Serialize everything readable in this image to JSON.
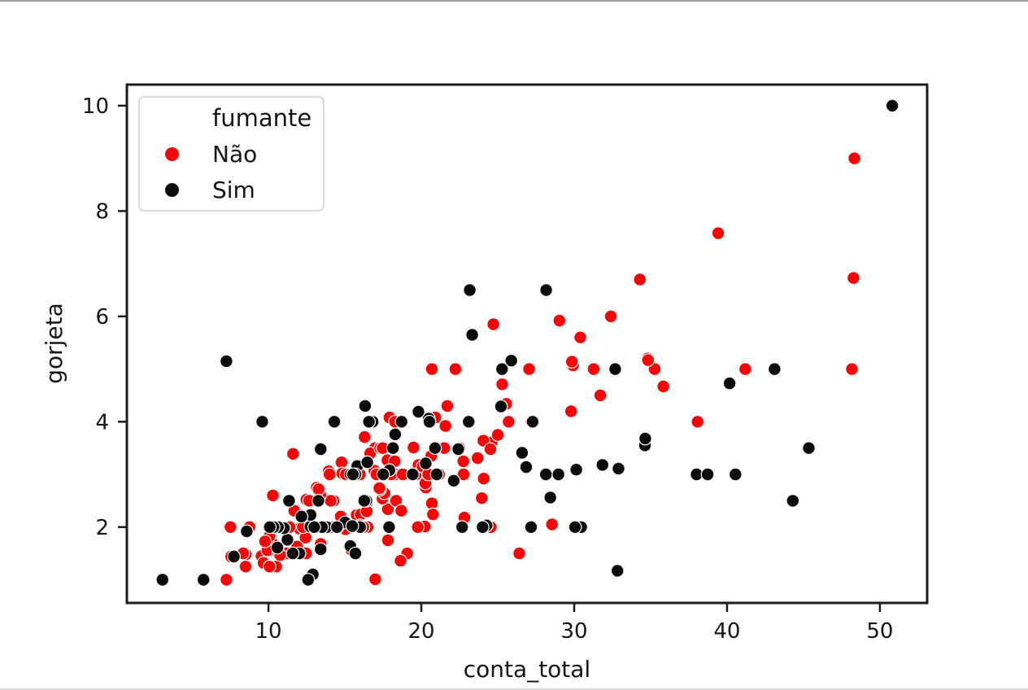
{
  "chart_data": {
    "type": "scatter",
    "title": "",
    "xlabel": "conta_total",
    "ylabel": "gorjeta",
    "xlim": [
      0.74,
      53.09
    ],
    "ylim": [
      0.56,
      10.4
    ],
    "xticks": [
      10,
      20,
      30,
      40,
      50
    ],
    "yticks": [
      2,
      4,
      6,
      8,
      10
    ],
    "grid": false,
    "axis_color": "#1c1c1c",
    "marker_edge_color": "#ffffff",
    "legend": {
      "title": "fumante",
      "position": "upper-left",
      "entries": [
        {
          "label": "Não",
          "color": "#f60707"
        },
        {
          "label": "Sim",
          "color": "#0a0a0a"
        }
      ]
    },
    "series": [
      {
        "name": "Não",
        "color": "#f60707",
        "points": [
          [
            16.99,
            1.01
          ],
          [
            10.34,
            1.66
          ],
          [
            21.01,
            3.5
          ],
          [
            23.68,
            3.31
          ],
          [
            24.59,
            3.61
          ],
          [
            25.29,
            4.71
          ],
          [
            8.77,
            2.0
          ],
          [
            26.88,
            3.12
          ],
          [
            15.04,
            1.96
          ],
          [
            14.78,
            3.23
          ],
          [
            10.27,
            1.71
          ],
          [
            35.26,
            5.0
          ],
          [
            15.42,
            1.57
          ],
          [
            18.43,
            3.0
          ],
          [
            14.83,
            3.02
          ],
          [
            21.58,
            3.92
          ],
          [
            10.33,
            1.67
          ],
          [
            16.29,
            3.71
          ],
          [
            16.97,
            3.5
          ],
          [
            20.65,
            3.35
          ],
          [
            17.92,
            4.08
          ],
          [
            20.29,
            2.75
          ],
          [
            15.77,
            2.23
          ],
          [
            39.42,
            7.58
          ],
          [
            19.82,
            3.18
          ],
          [
            17.81,
            2.34
          ],
          [
            13.37,
            2.0
          ],
          [
            12.69,
            2.0
          ],
          [
            21.7,
            4.3
          ],
          [
            19.65,
            3.0
          ],
          [
            9.55,
            1.45
          ],
          [
            18.35,
            2.5
          ],
          [
            15.06,
            3.0
          ],
          [
            20.69,
            2.45
          ],
          [
            17.78,
            3.27
          ],
          [
            24.06,
            3.64
          ],
          [
            16.31,
            2.0
          ],
          [
            16.93,
            3.07
          ],
          [
            18.69,
            2.31
          ],
          [
            31.27,
            5.0
          ],
          [
            16.04,
            2.24
          ],
          [
            17.46,
            2.54
          ],
          [
            13.94,
            3.06
          ],
          [
            9.68,
            1.32
          ],
          [
            30.4,
            5.6
          ],
          [
            18.29,
            3.0
          ],
          [
            22.23,
            5.0
          ],
          [
            32.4,
            6.0
          ],
          [
            28.55,
            2.05
          ],
          [
            18.04,
            3.0
          ],
          [
            12.54,
            2.5
          ],
          [
            10.29,
            2.6
          ],
          [
            34.81,
            5.2
          ],
          [
            9.94,
            1.56
          ],
          [
            25.56,
            4.34
          ],
          [
            19.49,
            3.51
          ],
          [
            26.41,
            1.5
          ],
          [
            48.27,
            6.73
          ],
          [
            17.59,
            2.64
          ],
          [
            20.08,
            3.15
          ],
          [
            16.45,
            2.47
          ],
          [
            20.23,
            2.01
          ],
          [
            12.02,
            1.97
          ],
          [
            17.07,
            3.0
          ],
          [
            14.73,
            2.2
          ],
          [
            10.51,
            1.25
          ],
          [
            27.2,
            4.0
          ],
          [
            22.76,
            3.0
          ],
          [
            17.29,
            2.71
          ],
          [
            16.66,
            3.4
          ],
          [
            10.07,
            1.83
          ],
          [
            15.98,
            2.03
          ],
          [
            34.83,
            5.17
          ],
          [
            13.03,
            2.0
          ],
          [
            18.28,
            4.0
          ],
          [
            24.71,
            5.85
          ],
          [
            21.16,
            3.0
          ],
          [
            22.49,
            3.5
          ],
          [
            22.75,
            3.25
          ],
          [
            12.46,
            1.5
          ],
          [
            20.92,
            4.08
          ],
          [
            18.24,
            3.76
          ],
          [
            14.0,
            3.0
          ],
          [
            7.25,
            1.0
          ],
          [
            38.07,
            4.0
          ],
          [
            23.95,
            2.55
          ],
          [
            25.71,
            4.0
          ],
          [
            17.31,
            3.5
          ],
          [
            29.93,
            5.07
          ],
          [
            10.65,
            1.5
          ],
          [
            12.43,
            1.8
          ],
          [
            24.08,
            2.92
          ],
          [
            11.69,
            2.31
          ],
          [
            13.42,
            1.68
          ],
          [
            14.26,
            2.5
          ],
          [
            15.95,
            2.0
          ],
          [
            12.48,
            2.52
          ],
          [
            29.8,
            4.2
          ],
          [
            8.52,
            1.48
          ],
          [
            14.52,
            2.0
          ],
          [
            11.38,
            2.0
          ],
          [
            22.82,
            2.18
          ],
          [
            19.08,
            1.5
          ],
          [
            20.27,
            2.83
          ],
          [
            11.17,
            1.5
          ],
          [
            12.26,
            2.0
          ],
          [
            18.26,
            3.25
          ],
          [
            8.51,
            1.25
          ],
          [
            10.33,
            2.0
          ],
          [
            14.15,
            2.0
          ],
          [
            13.16,
            2.75
          ],
          [
            17.47,
            3.5
          ],
          [
            34.3,
            6.7
          ],
          [
            41.19,
            5.0
          ],
          [
            27.05,
            5.0
          ],
          [
            16.43,
            2.3
          ],
          [
            8.35,
            1.5
          ],
          [
            18.64,
            1.36
          ],
          [
            11.87,
            1.63
          ],
          [
            9.78,
            1.73
          ],
          [
            7.51,
            2.0
          ],
          [
            14.07,
            2.5
          ],
          [
            13.13,
            2.0
          ],
          [
            17.26,
            2.74
          ],
          [
            24.55,
            2.0
          ],
          [
            19.77,
            2.0
          ],
          [
            29.85,
            5.14
          ],
          [
            48.17,
            5.0
          ],
          [
            25.0,
            3.75
          ],
          [
            13.39,
            2.61
          ],
          [
            16.49,
            2.0
          ],
          [
            21.5,
            3.5
          ],
          [
            12.66,
            2.5
          ],
          [
            16.21,
            2.0
          ],
          [
            13.81,
            2.0
          ],
          [
            24.52,
            3.48
          ],
          [
            20.76,
            2.24
          ],
          [
            31.71,
            4.5
          ],
          [
            20.69,
            5.0
          ],
          [
            7.56,
            1.44
          ],
          [
            48.33,
            9.0
          ],
          [
            15.98,
            3.0
          ],
          [
            20.45,
            3.0
          ],
          [
            13.28,
            2.72
          ],
          [
            11.61,
            3.39
          ],
          [
            10.77,
            1.47
          ],
          [
            10.07,
            1.25
          ],
          [
            35.83,
            4.67
          ],
          [
            29.03,
            5.92
          ],
          [
            17.82,
            1.75
          ],
          [
            18.78,
            3.0
          ]
        ]
      },
      {
        "name": "Sim",
        "color": "#0a0a0a",
        "points": [
          [
            38.01,
            3.0
          ],
          [
            11.24,
            1.76
          ],
          [
            20.29,
            3.21
          ],
          [
            13.81,
            2.0
          ],
          [
            11.02,
            1.98
          ],
          [
            18.29,
            3.76
          ],
          [
            3.07,
            1.0
          ],
          [
            15.01,
            2.09
          ],
          [
            26.86,
            3.14
          ],
          [
            25.28,
            5.0
          ],
          [
            17.92,
            3.08
          ],
          [
            19.44,
            3.0
          ],
          [
            32.68,
            5.0
          ],
          [
            28.97,
            3.0
          ],
          [
            5.75,
            1.0
          ],
          [
            16.32,
            4.3
          ],
          [
            40.17,
            4.73
          ],
          [
            27.28,
            4.0
          ],
          [
            12.03,
            1.5
          ],
          [
            21.01,
            3.0
          ],
          [
            11.35,
            2.5
          ],
          [
            15.38,
            3.0
          ],
          [
            44.3,
            2.5
          ],
          [
            22.42,
            3.48
          ],
          [
            15.36,
            1.64
          ],
          [
            20.49,
            4.06
          ],
          [
            25.21,
            4.29
          ],
          [
            14.31,
            4.0
          ],
          [
            16.0,
            2.0
          ],
          [
            17.51,
            3.0
          ],
          [
            10.59,
            1.61
          ],
          [
            10.63,
            2.0
          ],
          [
            50.81,
            10.0
          ],
          [
            15.81,
            3.16
          ],
          [
            7.25,
            5.15
          ],
          [
            31.85,
            3.18
          ],
          [
            16.82,
            4.0
          ],
          [
            32.9,
            3.11
          ],
          [
            17.89,
            2.0
          ],
          [
            14.48,
            2.0
          ],
          [
            9.6,
            4.0
          ],
          [
            34.63,
            3.55
          ],
          [
            34.65,
            3.68
          ],
          [
            23.33,
            5.65
          ],
          [
            45.35,
            3.5
          ],
          [
            23.17,
            6.5
          ],
          [
            40.55,
            3.0
          ],
          [
            20.9,
            3.5
          ],
          [
            30.46,
            2.0
          ],
          [
            18.15,
            3.5
          ],
          [
            23.1,
            4.0
          ],
          [
            15.69,
            1.5
          ],
          [
            19.81,
            4.19
          ],
          [
            28.44,
            2.56
          ],
          [
            15.48,
            2.02
          ],
          [
            16.58,
            4.0
          ],
          [
            10.34,
            2.0
          ],
          [
            43.11,
            5.0
          ],
          [
            13.0,
            2.0
          ],
          [
            13.51,
            2.0
          ],
          [
            18.71,
            4.0
          ],
          [
            12.74,
            2.01
          ],
          [
            13.0,
            2.0
          ],
          [
            16.4,
            2.5
          ],
          [
            20.53,
            4.0
          ],
          [
            16.47,
            3.23
          ],
          [
            26.59,
            3.41
          ],
          [
            38.73,
            3.0
          ],
          [
            24.27,
            2.03
          ],
          [
            12.76,
            2.23
          ],
          [
            30.06,
            2.0
          ],
          [
            25.89,
            5.16
          ],
          [
            13.27,
            2.5
          ],
          [
            28.17,
            6.5
          ],
          [
            12.9,
            1.1
          ],
          [
            28.15,
            3.0
          ],
          [
            11.59,
            1.5
          ],
          [
            7.74,
            1.44
          ],
          [
            30.14,
            3.09
          ],
          [
            12.16,
            2.2
          ],
          [
            13.42,
            3.48
          ],
          [
            8.58,
            1.92
          ],
          [
            13.42,
            1.58
          ],
          [
            16.27,
            2.5
          ],
          [
            10.09,
            2.0
          ],
          [
            22.12,
            2.88
          ],
          [
            24.01,
            2.0
          ],
          [
            15.69,
            3.0
          ],
          [
            15.53,
            3.0
          ],
          [
            12.6,
            1.0
          ],
          [
            32.83,
            1.17
          ],
          [
            27.18,
            2.0
          ],
          [
            22.67,
            2.0
          ]
        ]
      }
    ]
  }
}
